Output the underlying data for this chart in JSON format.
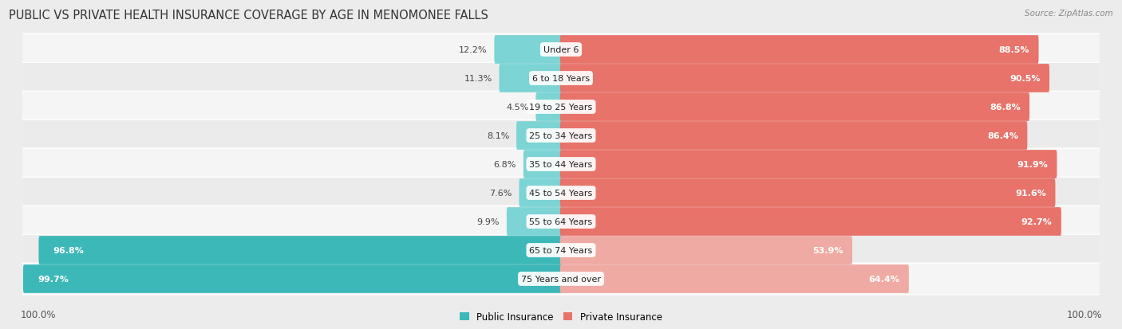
{
  "title": "PUBLIC VS PRIVATE HEALTH INSURANCE COVERAGE BY AGE IN MENOMONEE FALLS",
  "source": "Source: ZipAtlas.com",
  "categories": [
    "Under 6",
    "6 to 18 Years",
    "19 to 25 Years",
    "25 to 34 Years",
    "35 to 44 Years",
    "45 to 54 Years",
    "55 to 64 Years",
    "65 to 74 Years",
    "75 Years and over"
  ],
  "public_values": [
    12.2,
    11.3,
    4.5,
    8.1,
    6.8,
    7.6,
    9.9,
    96.8,
    99.7
  ],
  "private_values": [
    88.5,
    90.5,
    86.8,
    86.4,
    91.9,
    91.6,
    92.7,
    53.9,
    64.4
  ],
  "public_color_strong": "#3db8b8",
  "public_color_light": "#7dd4d4",
  "private_color_strong": "#e8736a",
  "private_color_light": "#f0aaa4",
  "bg_color": "#ececec",
  "row_bg_even": "#f5f5f5",
  "row_bg_odd": "#ebebeb",
  "legend_public": "Public Insurance",
  "legend_private": "Private Insurance",
  "axis_label_left": "100.0%",
  "axis_label_right": "100.0%",
  "max_val": 100.0,
  "title_fontsize": 10.5,
  "source_fontsize": 7.5,
  "legend_fontsize": 8.5,
  "value_fontsize": 8,
  "category_fontsize": 8
}
